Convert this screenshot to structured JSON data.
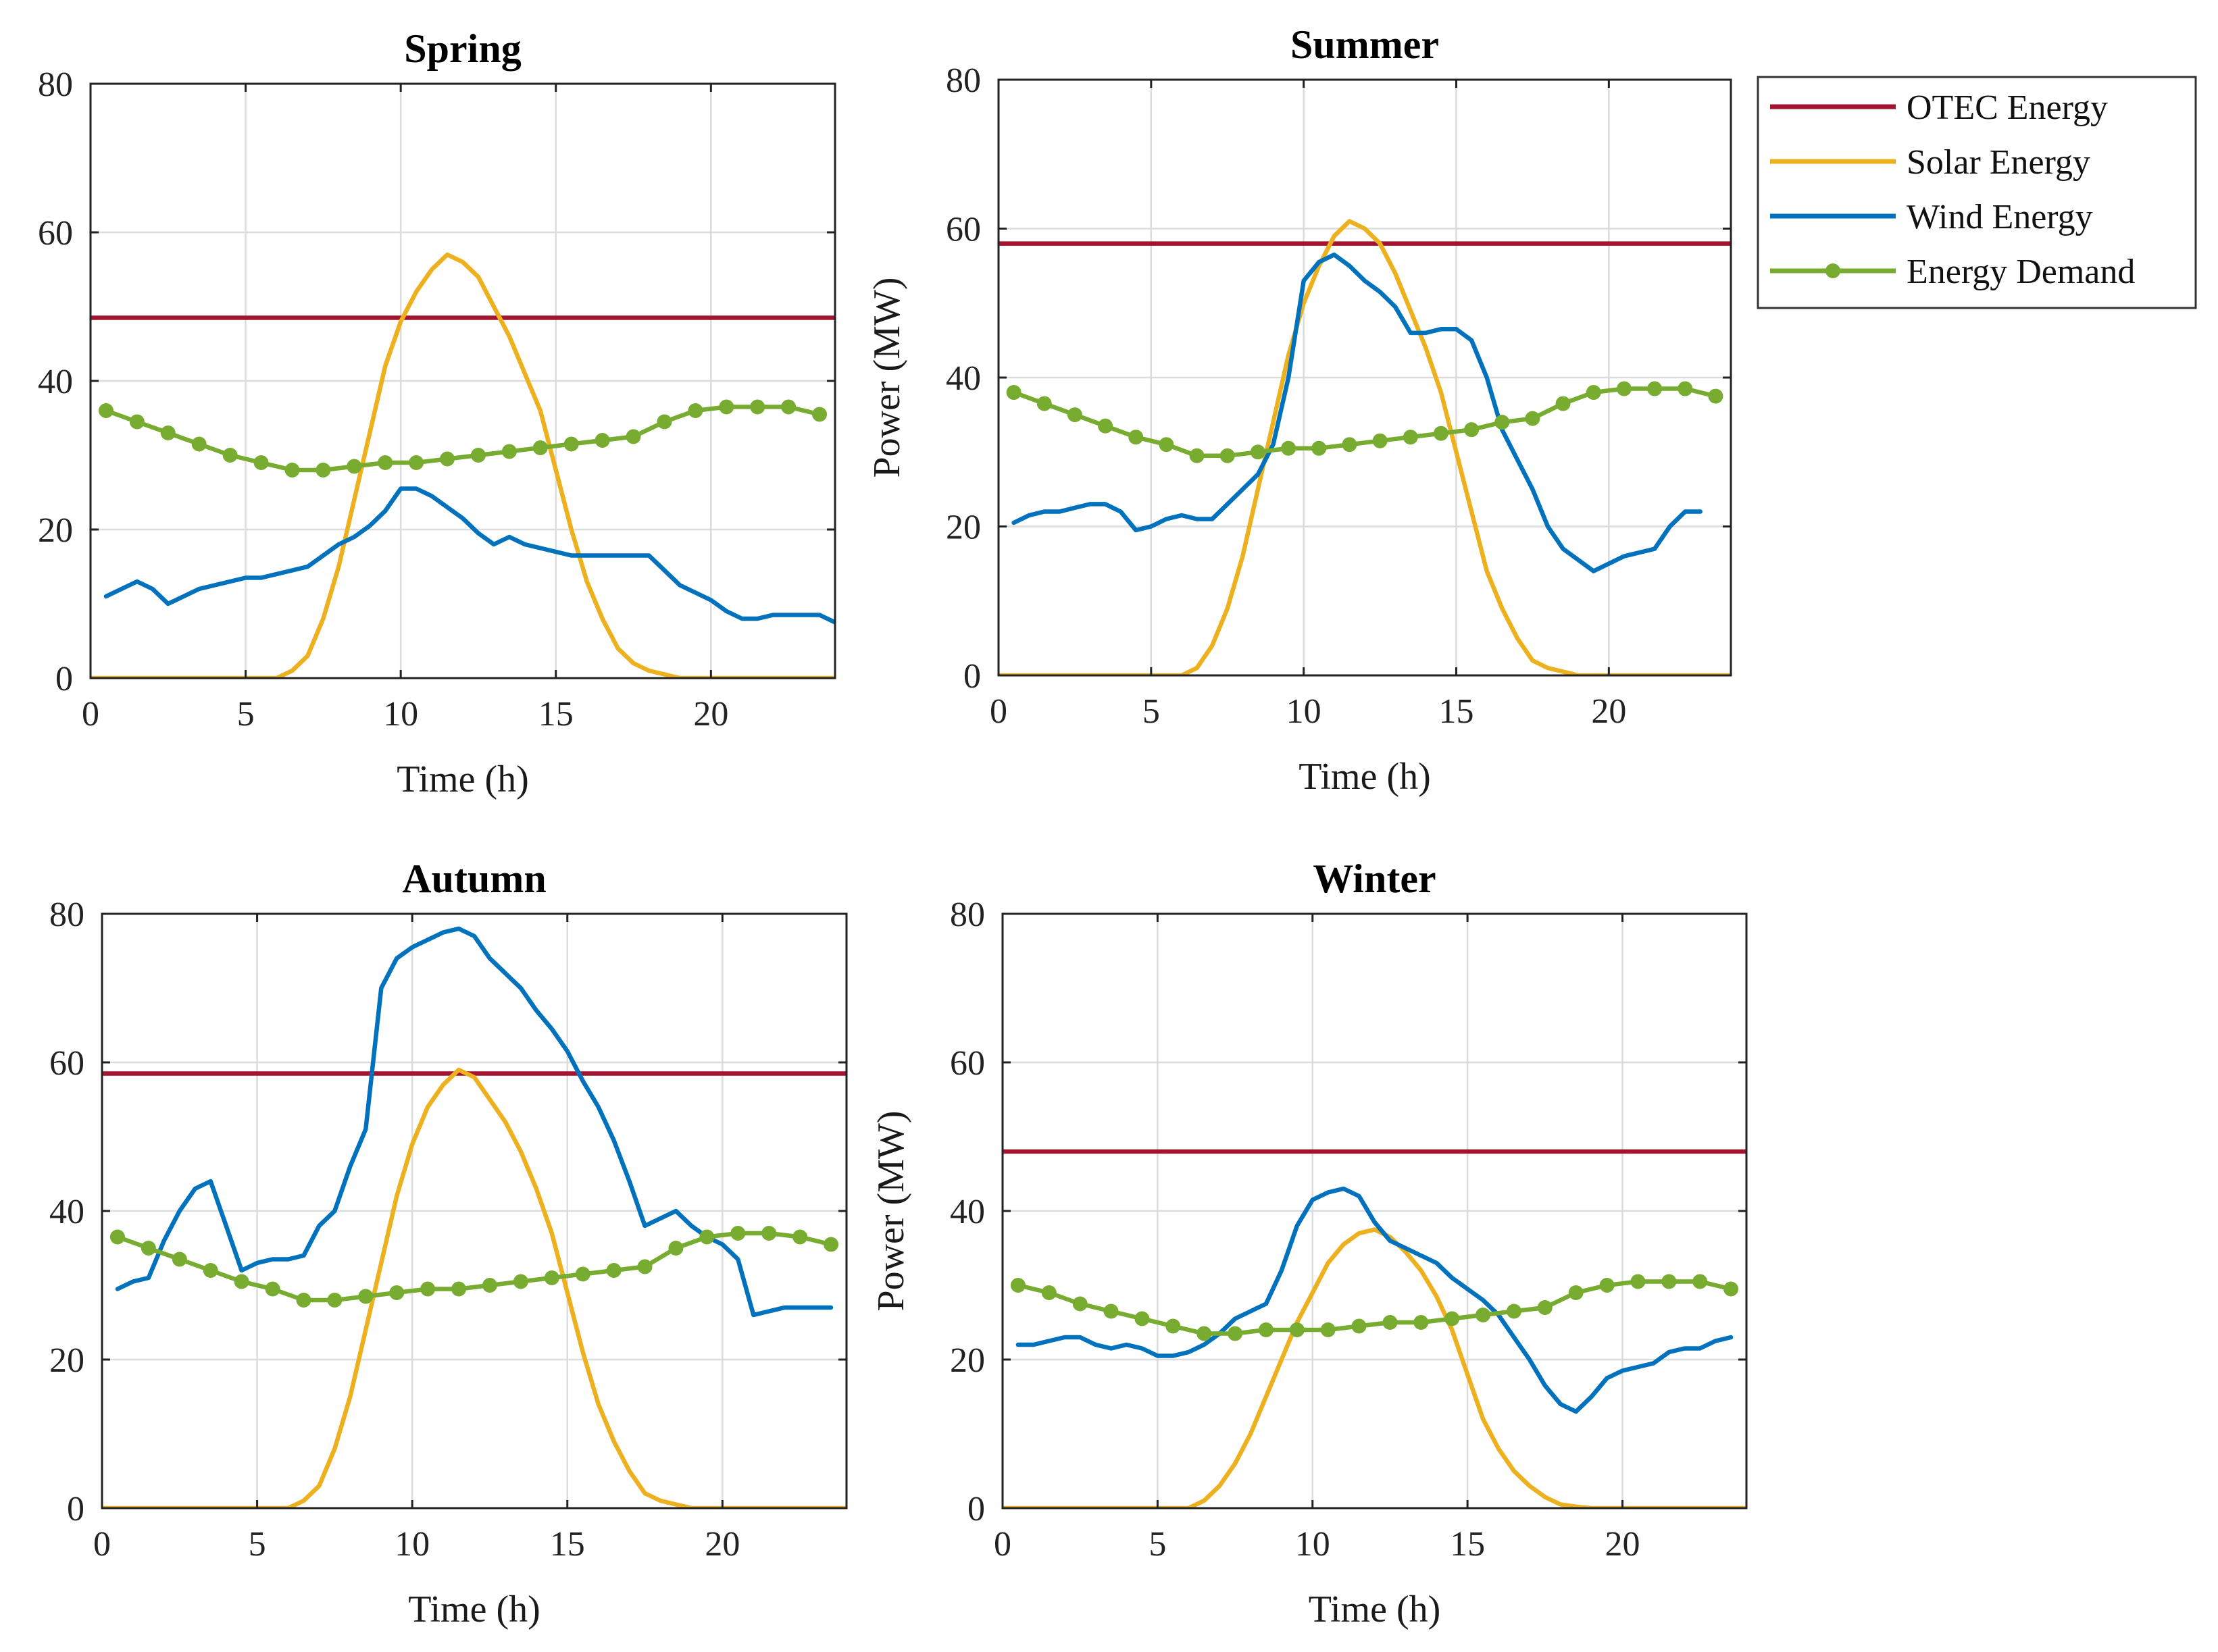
{
  "colors": {
    "otec": "#a2142f",
    "solar": "#edb120",
    "wind": "#0072bd",
    "demand": "#77ac30"
  },
  "legend": {
    "otec": "OTEC Energy",
    "solar": "Solar Energy",
    "wind": "Wind Energy",
    "demand": "Energy Demand"
  },
  "chart_data": [
    {
      "type": "line",
      "title": "Spring",
      "xlabel": "Time (h)",
      "ylabel": "",
      "xlim": [
        0,
        24
      ],
      "ylim": [
        0,
        80
      ],
      "xticks": [
        0,
        5,
        10,
        15,
        20
      ],
      "yticks": [
        0,
        20,
        40,
        60,
        80
      ],
      "grid": true,
      "series": [
        {
          "name": "OTEC Energy",
          "key": "otec",
          "x": [
            0,
            24
          ],
          "y": [
            48.5,
            48.5
          ]
        },
        {
          "name": "Solar Energy",
          "key": "solar",
          "x": [
            0,
            6,
            6.5,
            7,
            7.5,
            8,
            8.5,
            9,
            9.5,
            10,
            10.5,
            11,
            11.5,
            12,
            12.5,
            13,
            13.5,
            14,
            14.5,
            15,
            15.5,
            16,
            16.5,
            17,
            17.5,
            18,
            18.5,
            19,
            24
          ],
          "y": [
            0,
            0,
            1,
            3,
            8,
            15,
            24,
            33,
            42,
            48,
            52,
            55,
            57,
            56,
            54,
            50,
            46,
            41,
            36,
            28,
            20,
            13,
            8,
            4,
            2,
            1,
            0.5,
            0,
            0
          ]
        },
        {
          "name": "Wind Energy",
          "key": "wind",
          "x": [
            0.5,
            1,
            1.5,
            2,
            2.5,
            3,
            3.5,
            4,
            4.5,
            5,
            5.5,
            6,
            6.5,
            7,
            7.5,
            8,
            8.5,
            9,
            9.5,
            10,
            10.5,
            11,
            11.5,
            12,
            12.5,
            13,
            13.5,
            14,
            14.5,
            15,
            15.5,
            16,
            16.5,
            17,
            17.5,
            18,
            18.5,
            19,
            19.5,
            20,
            20.5,
            21,
            21.5,
            22,
            22.5,
            23,
            23.5,
            24
          ],
          "y": [
            11,
            12,
            13,
            12,
            10,
            11,
            12,
            12.5,
            13,
            13.5,
            13.5,
            14,
            14.5,
            15,
            16.5,
            18,
            19,
            20.5,
            22.5,
            25.5,
            25.5,
            24.5,
            23,
            21.5,
            19.5,
            18,
            19,
            18,
            17.5,
            17,
            16.5,
            16.5,
            16.5,
            16.5,
            16.5,
            16.5,
            14.5,
            12.5,
            11.5,
            10.5,
            9,
            8,
            8,
            8.5,
            8.5,
            8.5,
            8.5,
            7.5
          ]
        },
        {
          "name": "Energy Demand",
          "key": "demand",
          "x": [
            0.5,
            1.5,
            2.5,
            3.5,
            4.5,
            5.5,
            6.5,
            7.5,
            8.5,
            9.5,
            10.5,
            11.5,
            12.5,
            13.5,
            14.5,
            15.5,
            16.5,
            17.5,
            18.5,
            19.5,
            20.5,
            21.5,
            22.5,
            23.5
          ],
          "y": [
            36,
            34.5,
            33,
            31.5,
            30,
            29,
            28,
            28,
            28.5,
            29,
            29,
            29.5,
            30,
            30.5,
            31,
            31.5,
            32,
            32.5,
            34.5,
            36,
            36.5,
            36.5,
            36.5,
            35.5
          ]
        }
      ]
    },
    {
      "type": "line",
      "title": "Summer",
      "xlabel": "Time (h)",
      "ylabel": "Power (MW)",
      "xlim": [
        0,
        24
      ],
      "ylim": [
        0,
        80
      ],
      "xticks": [
        0,
        5,
        10,
        15,
        20
      ],
      "yticks": [
        0,
        20,
        40,
        60,
        80
      ],
      "grid": true,
      "series": [
        {
          "name": "OTEC Energy",
          "key": "otec",
          "x": [
            0,
            24
          ],
          "y": [
            58,
            58
          ]
        },
        {
          "name": "Solar Energy",
          "key": "solar",
          "x": [
            0,
            6,
            6.5,
            7,
            7.5,
            8,
            8.5,
            9,
            9.5,
            10,
            10.5,
            11,
            11.5,
            12,
            12.5,
            13,
            13.5,
            14,
            14.5,
            15,
            15.5,
            16,
            16.5,
            17,
            17.5,
            18,
            18.5,
            19,
            24
          ],
          "y": [
            0,
            0,
            1,
            4,
            9,
            16,
            25,
            34,
            43,
            50,
            55,
            59,
            61,
            60,
            58,
            54,
            49,
            44,
            38,
            30,
            22,
            14,
            9,
            5,
            2,
            1,
            0.5,
            0,
            0
          ]
        },
        {
          "name": "Wind Energy",
          "key": "wind",
          "x": [
            0.5,
            1,
            1.5,
            2,
            2.5,
            3,
            3.5,
            4,
            4.5,
            5,
            5.5,
            6,
            6.5,
            7,
            7.5,
            8,
            8.5,
            9,
            9.5,
            10,
            10.5,
            11,
            11.5,
            12,
            12.5,
            13,
            13.5,
            14,
            14.5,
            15,
            15.5,
            16,
            16.5,
            17,
            17.5,
            18,
            18.5,
            19,
            19.5,
            20,
            20.5,
            21,
            21.5,
            22,
            22.5,
            23
          ],
          "y": [
            20.5,
            21.5,
            22,
            22,
            22.5,
            23,
            23,
            22,
            19.5,
            20,
            21,
            21.5,
            21,
            21,
            23,
            25,
            27,
            31,
            40,
            53,
            55.5,
            56.5,
            55,
            53,
            51.5,
            49.5,
            46,
            46,
            46.5,
            46.5,
            45,
            40,
            33,
            29,
            25,
            20,
            17,
            15.5,
            14,
            15,
            16,
            16.5,
            17,
            20,
            22,
            22
          ]
        },
        {
          "name": "Energy Demand",
          "key": "demand",
          "x": [
            0.5,
            1.5,
            2.5,
            3.5,
            4.5,
            5.5,
            6.5,
            7.5,
            8.5,
            9.5,
            10.5,
            11.5,
            12.5,
            13.5,
            14.5,
            15.5,
            16.5,
            17.5,
            18.5,
            19.5,
            20.5,
            21.5,
            22.5,
            23.5
          ],
          "y": [
            38,
            36.5,
            35,
            33.5,
            32,
            31,
            29.5,
            29.5,
            30,
            30.5,
            30.5,
            31,
            31.5,
            32,
            32.5,
            33,
            34,
            34.5,
            36.5,
            38,
            38.5,
            38.5,
            38.5,
            37.5
          ]
        }
      ]
    },
    {
      "type": "line",
      "title": "Autumn",
      "xlabel": "Time (h)",
      "ylabel": "",
      "xlim": [
        0,
        24
      ],
      "ylim": [
        0,
        80
      ],
      "xticks": [
        0,
        5,
        10,
        15,
        20
      ],
      "yticks": [
        0,
        20,
        40,
        60,
        80
      ],
      "grid": true,
      "series": [
        {
          "name": "OTEC Energy",
          "key": "otec",
          "x": [
            0,
            24
          ],
          "y": [
            58.5,
            58.5
          ]
        },
        {
          "name": "Solar Energy",
          "key": "solar",
          "x": [
            0,
            6,
            6.5,
            7,
            7.5,
            8,
            8.5,
            9,
            9.5,
            10,
            10.5,
            11,
            11.5,
            12,
            12.5,
            13,
            13.5,
            14,
            14.5,
            15,
            15.5,
            16,
            16.5,
            17,
            17.5,
            18,
            18.5,
            19,
            24
          ],
          "y": [
            0,
            0,
            1,
            3,
            8,
            15,
            24,
            33,
            42,
            49,
            54,
            57,
            59,
            58,
            55,
            52,
            48,
            43,
            37,
            29,
            21,
            14,
            9,
            5,
            2,
            1,
            0.5,
            0,
            0
          ]
        },
        {
          "name": "Wind Energy",
          "key": "wind",
          "x": [
            0.5,
            1,
            1.5,
            2,
            2.5,
            3,
            3.5,
            4,
            4.5,
            5,
            5.5,
            6,
            6.5,
            7,
            7.5,
            8,
            8.5,
            9,
            9.5,
            10,
            10.5,
            11,
            11.5,
            12,
            12.5,
            13,
            13.5,
            14,
            14.5,
            15,
            15.5,
            16,
            16.5,
            17,
            17.5,
            18,
            18.5,
            19,
            19.5,
            20,
            20.5,
            21,
            21.5,
            22,
            22.5,
            23,
            23.5
          ],
          "y": [
            29.5,
            30.5,
            31,
            36,
            40,
            43,
            44,
            38,
            32,
            33,
            33.5,
            33.5,
            34,
            38,
            40,
            46,
            51,
            70,
            74,
            75.5,
            76.5,
            77.5,
            78,
            77,
            74,
            72,
            70,
            67,
            64.5,
            61.5,
            57.5,
            54,
            49.5,
            44,
            38,
            39,
            40,
            38,
            36.5,
            35.5,
            33.5,
            26,
            26.5,
            27,
            27,
            27,
            27
          ]
        },
        {
          "name": "Energy Demand",
          "key": "demand",
          "x": [
            0.5,
            1.5,
            2.5,
            3.5,
            4.5,
            5.5,
            6.5,
            7.5,
            8.5,
            9.5,
            10.5,
            11.5,
            12.5,
            13.5,
            14.5,
            15.5,
            16.5,
            17.5,
            18.5,
            19.5,
            20.5,
            21.5,
            22.5,
            23.5
          ],
          "y": [
            36.5,
            35,
            33.5,
            32,
            30.5,
            29.5,
            28,
            28,
            28.5,
            29,
            29.5,
            29.5,
            30,
            30.5,
            31,
            31.5,
            32,
            32.5,
            35,
            36.5,
            37,
            37,
            36.5,
            35.5
          ]
        }
      ]
    },
    {
      "type": "line",
      "title": "Winter",
      "xlabel": "Time (h)",
      "ylabel": "Power (MW)",
      "xlim": [
        0,
        24
      ],
      "ylim": [
        0,
        80
      ],
      "xticks": [
        0,
        5,
        10,
        15,
        20
      ],
      "yticks": [
        0,
        20,
        40,
        60,
        80
      ],
      "grid": true,
      "series": [
        {
          "name": "OTEC Energy",
          "key": "otec",
          "x": [
            0,
            24
          ],
          "y": [
            48,
            48
          ]
        },
        {
          "name": "Solar Energy",
          "key": "solar",
          "x": [
            0,
            6,
            6.5,
            7,
            7.5,
            8,
            8.5,
            9,
            9.5,
            10,
            10.5,
            11,
            11.5,
            12,
            12.5,
            13,
            13.5,
            14,
            14.5,
            15,
            15.5,
            16,
            16.5,
            17,
            17.5,
            18,
            18.5,
            19,
            24
          ],
          "y": [
            0,
            0,
            1,
            3,
            6,
            10,
            15,
            20,
            25,
            29,
            33,
            35.5,
            37,
            37.5,
            36.5,
            34.5,
            32,
            28.5,
            24,
            18,
            12,
            8,
            5,
            3,
            1.5,
            0.5,
            0.2,
            0,
            0
          ]
        },
        {
          "name": "Wind Energy",
          "key": "wind",
          "x": [
            0.5,
            1,
            1.5,
            2,
            2.5,
            3,
            3.5,
            4,
            4.5,
            5,
            5.5,
            6,
            6.5,
            7,
            7.5,
            8,
            8.5,
            9,
            9.5,
            10,
            10.5,
            11,
            11.5,
            12,
            12.5,
            13,
            13.5,
            14,
            14.5,
            15,
            15.5,
            16,
            16.5,
            17,
            17.5,
            18,
            18.5,
            19,
            19.5,
            20,
            20.5,
            21,
            21.5,
            22,
            22.5,
            23,
            23.5
          ],
          "y": [
            22,
            22,
            22.5,
            23,
            23,
            22,
            21.5,
            22,
            21.5,
            20.5,
            20.5,
            21,
            22,
            23.5,
            25.5,
            26.5,
            27.5,
            32,
            38,
            41.5,
            42.5,
            43,
            42,
            38.5,
            36,
            35,
            34,
            33,
            31,
            29.5,
            28,
            26,
            23,
            20,
            16.5,
            14,
            13,
            15,
            17.5,
            18.5,
            19,
            19.5,
            21,
            21.5,
            21.5,
            22.5,
            23
          ]
        },
        {
          "name": "Energy Demand",
          "key": "demand",
          "x": [
            0.5,
            1.5,
            2.5,
            3.5,
            4.5,
            5.5,
            6.5,
            7.5,
            8.5,
            9.5,
            10.5,
            11.5,
            12.5,
            13.5,
            14.5,
            15.5,
            16.5,
            17.5,
            18.5,
            19.5,
            20.5,
            21.5,
            22.5,
            23.5
          ],
          "y": [
            30,
            29,
            27.5,
            26.5,
            25.5,
            24.5,
            23.5,
            23.5,
            24,
            24,
            24,
            24.5,
            25,
            25,
            25.5,
            26,
            26.5,
            27,
            29,
            30,
            30.5,
            30.5,
            30.5,
            29.5
          ]
        }
      ]
    }
  ]
}
